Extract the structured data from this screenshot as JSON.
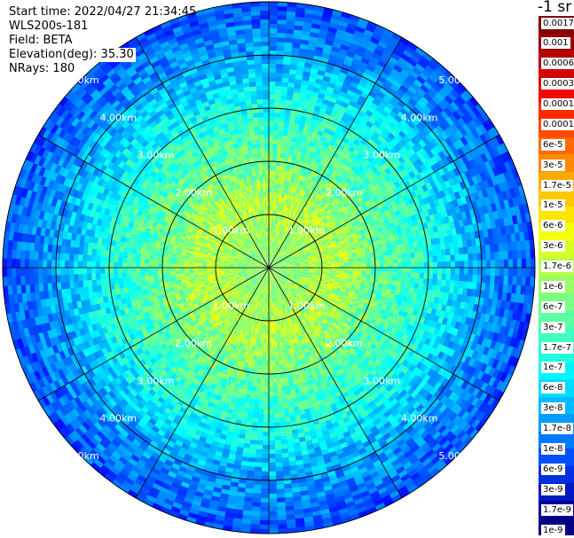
{
  "info": {
    "start_time": "Start time: 2022/04/27 21:34:45",
    "device": "WLS200s-181",
    "field": "Field: BETA",
    "elevation": "Elevation(deg): 35.30",
    "nrays": "NRays: 180"
  },
  "colorbar": {
    "unit": "-1 sr",
    "labels": [
      "0.0017",
      "0.001",
      "0.0006",
      "0.0003",
      "0.00017",
      "0.0001",
      "6e-5",
      "3e-5",
      "1.7e-5",
      "1e-5",
      "6e-6",
      "3e-6",
      "1.7e-6",
      "1e-6",
      "6e-7",
      "3e-7",
      "1.7e-7",
      "1e-7",
      "6e-8",
      "3e-8",
      "1.7e-8",
      "1e-8",
      "6e-9",
      "3e-9",
      "1.7e-9",
      "1e-9"
    ],
    "colors": [
      "#7f0000",
      "#9a0000",
      "#b80000",
      "#d50000",
      "#f30800",
      "#ff2a00",
      "#ff4a00",
      "#ff6a00",
      "#ff8a00",
      "#ffaa00",
      "#ffc800",
      "#ffe600",
      "#f5ff0b",
      "#d6ff29",
      "#b7ff48",
      "#98ff66",
      "#7aff84",
      "#5cffa2",
      "#3effc0",
      "#20ffde",
      "#00f6ff",
      "#00dcff",
      "#00bcff",
      "#009cff",
      "#0078ff",
      "#0050ff",
      "#0030e0",
      "#0018c0",
      "#00009f",
      "#000080"
    ]
  },
  "chart_data": {
    "type": "heatmap",
    "subtype": "polar PPI scan",
    "range_rings_km": [
      1,
      2,
      3,
      4,
      5
    ],
    "ring_labels": [
      "1.00km",
      "2.00km",
      "3.00km",
      "4.00km",
      "5.00km"
    ],
    "radial_spokes_deg": [
      0,
      30,
      60,
      90,
      120,
      150,
      180,
      210,
      240,
      270,
      300,
      330
    ],
    "max_range_km": 5.0,
    "colorscale": "jet, logarithmic",
    "color_range": [
      1e-09,
      0.0017
    ],
    "approx_backscatter_profile": [
      {
        "range_km": 0.5,
        "beta": 1.7e-06
      },
      {
        "range_km": 1.2,
        "beta": 3e-06
      },
      {
        "range_km": 2.0,
        "beta": 1e-06
      },
      {
        "range_km": 3.0,
        "beta": 3e-07
      },
      {
        "range_km": 4.0,
        "beta": 6e-08
      },
      {
        "range_km": 5.0,
        "beta": 1.7e-08
      }
    ]
  }
}
